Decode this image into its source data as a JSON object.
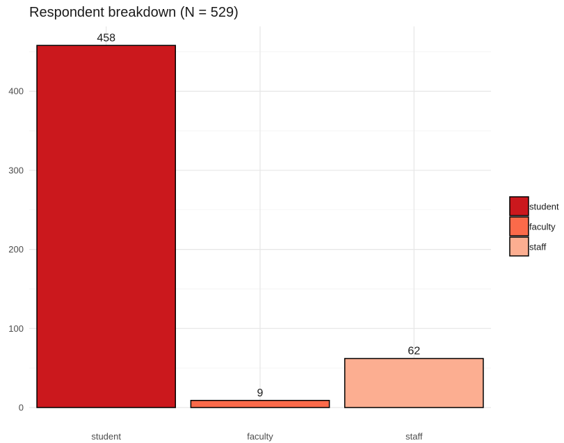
{
  "chart_data": {
    "type": "bar",
    "title": "Respondent breakdown (N = 529)",
    "xlabel": "",
    "ylabel": "",
    "categories": [
      "student",
      "faculty",
      "staff"
    ],
    "values": [
      458,
      9,
      62
    ],
    "data_labels": [
      "458",
      "9",
      "62"
    ],
    "colors": [
      "#cb181d",
      "#fb6a4a",
      "#fcae91"
    ],
    "ylim": [
      0,
      482
    ],
    "yticks": [
      0,
      100,
      200,
      300,
      400
    ],
    "grid": true,
    "legend": {
      "placement": "right",
      "entries": [
        "student",
        "faculty",
        "staff"
      ]
    }
  }
}
